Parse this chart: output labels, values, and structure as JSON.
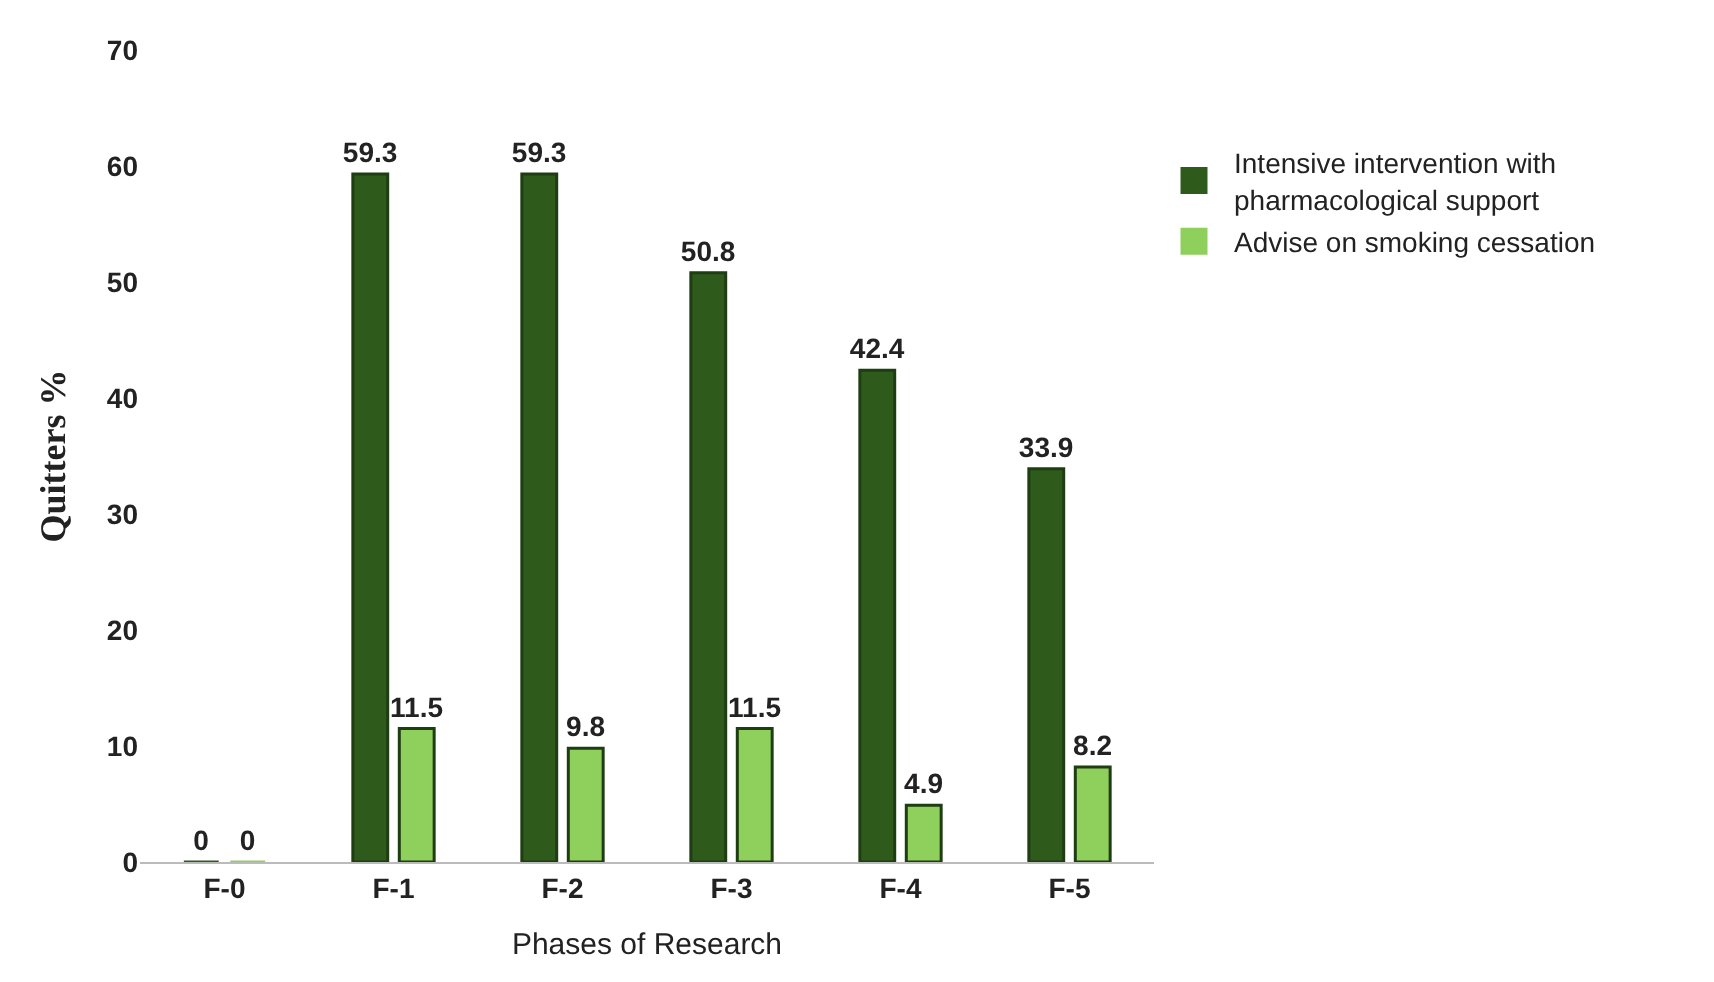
{
  "chart_data": {
    "type": "bar",
    "xlabel": "Phases of Research",
    "ylabel": "Quitters %",
    "categories": [
      "F-0",
      "F-1",
      "F-2",
      "F-3",
      "F-4",
      "F-5"
    ],
    "series": [
      {
        "name": "Intensive intervention with pharmacological support",
        "color": "#2e5a1c",
        "values": [
          0,
          59.3,
          59.3,
          50.8,
          42.4,
          33.9
        ]
      },
      {
        "name": "Advise on smoking cessation",
        "color": "#8fcf5c",
        "values": [
          0,
          11.5,
          9.8,
          11.5,
          4.9,
          8.2
        ]
      }
    ],
    "ylim": [
      0,
      70
    ],
    "yticks": [
      0,
      10,
      20,
      30,
      40,
      50,
      60,
      70
    ],
    "legend": "top right",
    "data_labels": true
  }
}
